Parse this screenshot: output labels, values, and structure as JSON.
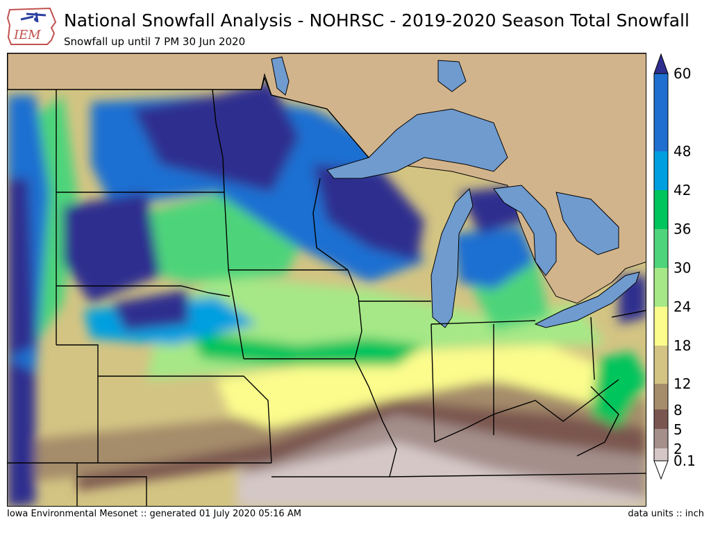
{
  "header": {
    "logo_text": "IEM",
    "title": "National Snowfall Analysis - NOHRSC - 2019-2020 Season Total Snowfall",
    "subtitle": "Snowfall up until 7 PM 30 Jun 2020"
  },
  "footer": {
    "left_text": "Iowa Environmental Mesonet :: generated 01 July 2020 05:16 AM",
    "right_text": "data units :: inch"
  },
  "legend": {
    "ticks": [
      "60",
      "48",
      "42",
      "36",
      "30",
      "24",
      "18",
      "12",
      "8",
      "5",
      "2",
      "0.1"
    ],
    "colors": {
      "over_60": "#2e2e8f",
      "48_60": "#1f6fd1",
      "42_48": "#009fe0",
      "36_42": "#00c45c",
      "30_36": "#4ed47a",
      "24_30": "#a6e887",
      "18_24": "#fbfc8c",
      "12_18": "#d3c483",
      "8_12": "#a58c6a",
      "5_8": "#7a5650",
      "2_5": "#a48f8b",
      "0.1_2": "#d4c7c6",
      "under_0.1": "#ffffff"
    }
  },
  "map": {
    "land_color": "#d2b48c",
    "water_color": "#6f9bcf",
    "border_color": "#000000"
  }
}
